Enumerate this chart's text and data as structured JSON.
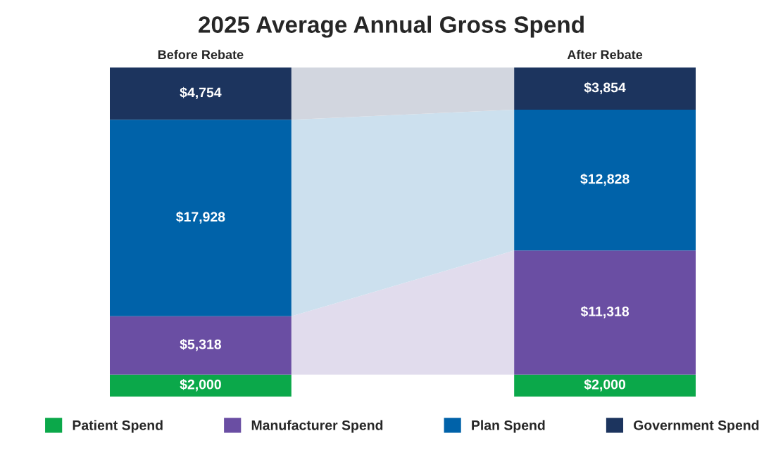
{
  "chart_data": {
    "type": "bar",
    "title": "2025 Average Annual Gross Spend",
    "stacked": true,
    "legend": "bottom",
    "categories": [
      "Before Rebate",
      "After Rebate"
    ],
    "series": [
      {
        "name": "Patient Spend",
        "color": "#0ba84a",
        "values": [
          2000,
          2000
        ],
        "value_labels": [
          "$2,000",
          "$2,000"
        ]
      },
      {
        "name": "Manufacturer Spend",
        "color": "#6a4ea3",
        "values": [
          5318,
          11318
        ],
        "value_labels": [
          "$5,318",
          "$11,318"
        ]
      },
      {
        "name": "Plan Spend",
        "color": "#0062a9",
        "values": [
          17928,
          12828
        ],
        "value_labels": [
          "$17,928",
          "$12,828"
        ]
      },
      {
        "name": "Government Spend",
        "color": "#1c345e",
        "values": [
          4754,
          3854
        ],
        "value_labels": [
          "$4,754",
          "$3,854"
        ]
      }
    ]
  }
}
